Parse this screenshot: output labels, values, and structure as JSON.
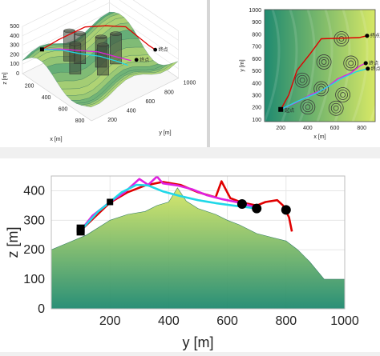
{
  "colors": {
    "background": "#f0f0f0",
    "terrain_low": "#1f8a70",
    "terrain_high": "#d7e866",
    "path_red": "#e00000",
    "path_magenta": "#e020e0",
    "path_cyan": "#20d8e8",
    "marker": "#000000"
  },
  "chart_data": [
    {
      "id": "3d-view",
      "type": "surface",
      "title": "",
      "xlabel": "x [m]",
      "ylabel": "y [m]",
      "zlabel": "z [m]",
      "x_ticks": [
        "200",
        "400",
        "600",
        "800"
      ],
      "y_ticks": [
        "200",
        "400",
        "600",
        "800",
        "1000"
      ],
      "z_ticks": [
        "0",
        "100",
        "200",
        "300",
        "400",
        "500"
      ],
      "zlim": [
        0,
        500
      ],
      "grid": true,
      "legend_labels": [
        "终点",
        "终点"
      ],
      "obstacle_count": 6
    },
    {
      "id": "top-view",
      "type": "contour",
      "title": "",
      "xlabel": "x [m]",
      "ylabel": "y [m]",
      "x_ticks": [
        "200",
        "400",
        "600",
        "800"
      ],
      "y_ticks": [
        "100",
        "200",
        "300",
        "400",
        "500",
        "600",
        "700",
        "800",
        "900",
        "1000"
      ],
      "xlim": [
        80,
        900
      ],
      "ylim": [
        80,
        1000
      ],
      "start": {
        "x": 200,
        "y": 180,
        "label": "起点"
      },
      "ends": [
        {
          "x": 840,
          "y": 785,
          "label": "终点"
        },
        {
          "x": 830,
          "y": 560,
          "label": "终点"
        },
        {
          "x": 845,
          "y": 515,
          "label": "终点"
        }
      ],
      "obstacles": [
        {
          "x": 650,
          "y": 760
        },
        {
          "x": 520,
          "y": 570
        },
        {
          "x": 720,
          "y": 560
        },
        {
          "x": 360,
          "y": 420
        },
        {
          "x": 500,
          "y": 350
        },
        {
          "x": 660,
          "y": 300
        },
        {
          "x": 400,
          "y": 200
        },
        {
          "x": 610,
          "y": 190
        }
      ],
      "series": [
        {
          "color": "red",
          "points": [
            [
              200,
              180
            ],
            [
              260,
              300
            ],
            [
              320,
              500
            ],
            [
              420,
              640
            ],
            [
              500,
              760
            ],
            [
              780,
              770
            ],
            [
              840,
              785
            ]
          ]
        },
        {
          "color": "magenta",
          "points": [
            [
              200,
              180
            ],
            [
              320,
              240
            ],
            [
              420,
              300
            ],
            [
              530,
              350
            ],
            [
              620,
              430
            ],
            [
              720,
              480
            ],
            [
              790,
              540
            ],
            [
              830,
              560
            ]
          ]
        },
        {
          "color": "cyan",
          "points": [
            [
              200,
              180
            ],
            [
              330,
              250
            ],
            [
              460,
              310
            ],
            [
              570,
              380
            ],
            [
              660,
              440
            ],
            [
              760,
              490
            ],
            [
              845,
              515
            ]
          ]
        }
      ]
    },
    {
      "id": "side-view",
      "type": "surface",
      "title": "",
      "xlabel": "y [m]",
      "ylabel": "z [m]",
      "x_ticks": [
        "200",
        "400",
        "600",
        "800",
        "1000"
      ],
      "y_ticks": [
        "0",
        "100",
        "200",
        "300",
        "400"
      ],
      "xlim": [
        0,
        1000
      ],
      "ylim": [
        0,
        450
      ],
      "start_markers": [
        [
          100,
          272
        ],
        [
          100,
          262
        ]
      ],
      "end_markers": [
        [
          650,
          355
        ],
        [
          700,
          340
        ],
        [
          800,
          335
        ]
      ],
      "series": [
        {
          "color": "red",
          "points": [
            [
              100,
              265
            ],
            [
              200,
              360
            ],
            [
              260,
              395
            ],
            [
              320,
              418
            ],
            [
              380,
              430
            ],
            [
              440,
              420
            ],
            [
              500,
              395
            ],
            [
              560,
              378
            ],
            [
              580,
              432
            ],
            [
              610,
              375
            ],
            [
              650,
              360
            ],
            [
              700,
              350
            ],
            [
              730,
              362
            ],
            [
              770,
              368
            ],
            [
              790,
              350
            ],
            [
              810,
              310
            ],
            [
              820,
              262
            ]
          ]
        },
        {
          "color": "magenta",
          "points": [
            [
              100,
              265
            ],
            [
              140,
              315
            ],
            [
              200,
              362
            ],
            [
              250,
              395
            ],
            [
              300,
              440
            ],
            [
              330,
              420
            ],
            [
              360,
              448
            ],
            [
              380,
              425
            ],
            [
              430,
              418
            ],
            [
              480,
              405
            ],
            [
              530,
              385
            ],
            [
              580,
              372
            ],
            [
              640,
              360
            ],
            [
              700,
              343
            ]
          ]
        },
        {
          "color": "cyan",
          "points": [
            [
              100,
              265
            ],
            [
              160,
              330
            ],
            [
              200,
              362
            ],
            [
              240,
              395
            ],
            [
              290,
              420
            ],
            [
              330,
              418
            ],
            [
              380,
              398
            ],
            [
              440,
              382
            ],
            [
              500,
              368
            ],
            [
              560,
              358
            ],
            [
              620,
              350
            ],
            [
              660,
              345
            ],
            [
              700,
              340
            ]
          ]
        }
      ],
      "terrain_top": [
        [
          0,
          200
        ],
        [
          60,
          225
        ],
        [
          120,
          250
        ],
        [
          200,
          300
        ],
        [
          260,
          320
        ],
        [
          320,
          330
        ],
        [
          360,
          350
        ],
        [
          400,
          362
        ],
        [
          430,
          410
        ],
        [
          460,
          365
        ],
        [
          500,
          340
        ],
        [
          560,
          320
        ],
        [
          600,
          300
        ],
        [
          640,
          285
        ],
        [
          700,
          255
        ],
        [
          760,
          240
        ],
        [
          800,
          230
        ],
        [
          840,
          200
        ],
        [
          880,
          160
        ],
        [
          930,
          100
        ],
        [
          1000,
          100
        ]
      ]
    }
  ]
}
